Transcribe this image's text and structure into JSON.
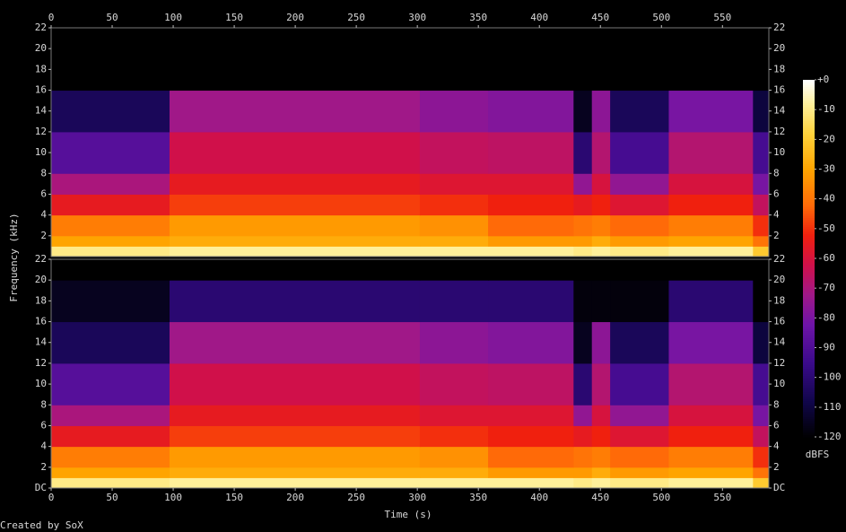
{
  "chart_data": {
    "type": "heatmap",
    "xlabel": "Time (s)",
    "ylabel": "Frequency (kHz)",
    "colorbar_label": "dBFS",
    "footer": "Created by SoX",
    "xlim": [
      0,
      588
    ],
    "xticks": [
      0,
      50,
      100,
      150,
      200,
      250,
      300,
      350,
      400,
      450,
      500,
      550
    ],
    "ylim": [
      0,
      22
    ],
    "yticks_top": [
      2,
      4,
      6,
      8,
      10,
      12,
      14,
      16,
      18,
      20,
      22
    ],
    "yticks_bottom": [
      {
        "value": 0,
        "label": "DC"
      },
      2,
      4,
      6,
      8,
      10,
      12,
      14,
      16,
      18,
      20,
      22
    ],
    "zlim": [
      -120,
      0
    ],
    "zticks": [
      {
        "value": 0,
        "label": "+0"
      },
      -10,
      -20,
      -30,
      -40,
      -50,
      -60,
      -70,
      -80,
      -90,
      -100,
      -110,
      -120
    ],
    "colorscale": [
      [
        -120,
        "#000000"
      ],
      [
        -108,
        "#10064a"
      ],
      [
        -95,
        "#3a0a8a"
      ],
      [
        -82,
        "#6e14a8"
      ],
      [
        -72,
        "#a01888"
      ],
      [
        -62,
        "#d0104a"
      ],
      [
        -52,
        "#f0200e"
      ],
      [
        -42,
        "#ff6a08"
      ],
      [
        -30,
        "#ffa400"
      ],
      [
        -18,
        "#ffd23a"
      ],
      [
        -8,
        "#fff09a"
      ],
      [
        0,
        "#ffffff"
      ]
    ],
    "x_edges": [
      0,
      97,
      302,
      358,
      428,
      443,
      458,
      506,
      575,
      588
    ],
    "y_edges": [
      0,
      1,
      2,
      4,
      6,
      8,
      12,
      16,
      20,
      22
    ],
    "series": [
      {
        "values": [
          [
            -10,
            -8,
            -8,
            -8,
            -10,
            -8,
            -10,
            -8,
            -20
          ],
          [
            -30,
            -28,
            -28,
            -32,
            -32,
            -28,
            -32,
            -30,
            -40
          ],
          [
            -38,
            -32,
            -34,
            -42,
            -40,
            -38,
            -42,
            -38,
            -50
          ],
          [
            -55,
            -48,
            -50,
            -52,
            -55,
            -52,
            -58,
            -52,
            -65
          ],
          [
            -70,
            -55,
            -58,
            -58,
            -75,
            -60,
            -75,
            -60,
            -80
          ],
          [
            -88,
            -62,
            -65,
            -66,
            -100,
            -68,
            -92,
            -68,
            -92
          ],
          [
            -105,
            -72,
            -76,
            -78,
            -115,
            -76,
            -105,
            -80,
            -110
          ],
          [
            -120,
            -120,
            -120,
            -120,
            -120,
            -120,
            -120,
            -120,
            -120
          ],
          [
            -120,
            -120,
            -120,
            -120,
            -120,
            -120,
            -120,
            -120,
            -120
          ]
        ]
      },
      {
        "values": [
          [
            -10,
            -8,
            -8,
            -8,
            -10,
            -8,
            -10,
            -8,
            -20
          ],
          [
            -30,
            -28,
            -28,
            -32,
            -32,
            -28,
            -32,
            -30,
            -40
          ],
          [
            -38,
            -32,
            -34,
            -42,
            -40,
            -38,
            -42,
            -38,
            -50
          ],
          [
            -55,
            -48,
            -50,
            -52,
            -55,
            -52,
            -58,
            -52,
            -65
          ],
          [
            -70,
            -55,
            -58,
            -58,
            -75,
            -60,
            -75,
            -60,
            -80
          ],
          [
            -88,
            -62,
            -65,
            -66,
            -100,
            -68,
            -92,
            -68,
            -92
          ],
          [
            -105,
            -72,
            -76,
            -78,
            -115,
            -76,
            -105,
            -80,
            -110
          ],
          [
            -115,
            -100,
            -100,
            -100,
            -118,
            -118,
            -118,
            -100,
            -120
          ],
          [
            -120,
            -120,
            -120,
            -120,
            -120,
            -120,
            -120,
            -120,
            -120
          ]
        ]
      }
    ]
  }
}
